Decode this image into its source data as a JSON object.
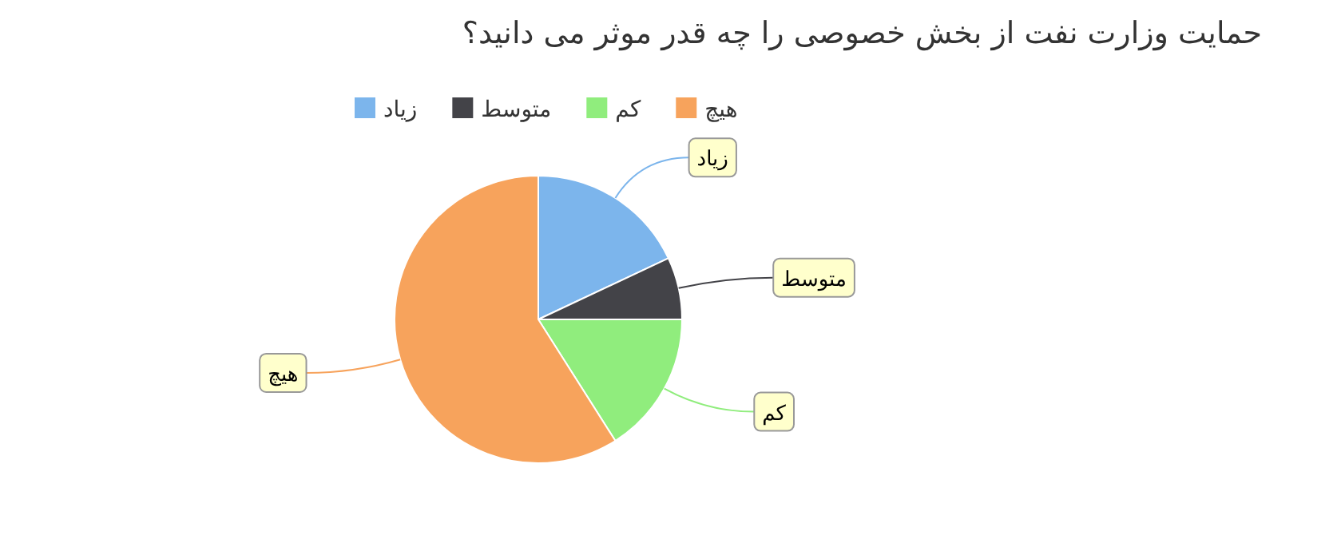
{
  "chart_data": {
    "type": "pie",
    "title": "حمایت وزارت نفت از بخش خصوصی را چه قدر موثر می دانید؟",
    "categories": [
      "زیاد",
      "متوسط",
      "کم",
      "هیچ"
    ],
    "values": [
      18,
      7,
      16,
      59
    ],
    "colors": [
      "#7cb5ec",
      "#434348",
      "#90ed7d",
      "#f7a35c"
    ],
    "legend": "top"
  }
}
